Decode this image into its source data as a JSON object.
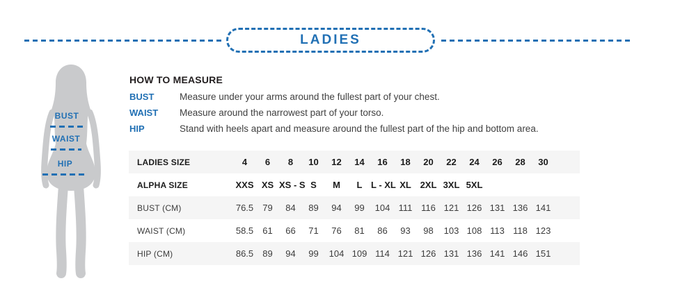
{
  "banner": {
    "title": "LADIES"
  },
  "figure": {
    "description": "female-body-silhouette",
    "labels": {
      "bust": "BUST",
      "waist": "WAIST",
      "hip": "HIP"
    }
  },
  "how_to_measure": {
    "heading": "HOW TO MEASURE",
    "rows": [
      {
        "label": "BUST",
        "text": "Measure under your arms around the fullest part of your chest."
      },
      {
        "label": "WAIST",
        "text": "Measure around the narrowest part of your torso."
      },
      {
        "label": "HIP",
        "text": "Stand with heels apart and measure around the fullest part of the hip and bottom area."
      }
    ]
  },
  "size_table": {
    "rows": [
      {
        "label": "LADIES SIZE",
        "header": true,
        "values": [
          "4",
          "6",
          "8",
          "10",
          "12",
          "14",
          "16",
          "18",
          "20",
          "22",
          "24",
          "26",
          "28",
          "30"
        ]
      },
      {
        "label": "ALPHA SIZE",
        "header": true,
        "values": [
          "XXS",
          "XS",
          "XS - S",
          "S",
          "M",
          "L",
          "L - XL",
          "XL",
          "2XL",
          "3XL",
          "5XL",
          "",
          "",
          ""
        ]
      },
      {
        "label": "BUST (CM)",
        "header": false,
        "values": [
          "76.5",
          "79",
          "84",
          "89",
          "94",
          "99",
          "104",
          "111",
          "116",
          "121",
          "126",
          "131",
          "136",
          "141"
        ]
      },
      {
        "label": "WAIST (CM)",
        "header": false,
        "values": [
          "58.5",
          "61",
          "66",
          "71",
          "76",
          "81",
          "86",
          "93",
          "98",
          "103",
          "108",
          "113",
          "118",
          "123"
        ]
      },
      {
        "label": "HIP (CM)",
        "header": false,
        "values": [
          "86.5",
          "89",
          "94",
          "99",
          "104",
          "109",
          "114",
          "121",
          "126",
          "131",
          "136",
          "141",
          "146",
          "151"
        ]
      }
    ]
  },
  "colors": {
    "accent_blue": "#2170b4",
    "silhouette_gray": "#c9cacc",
    "row_stripe": "#f5f5f5",
    "text_dark": "#231f20"
  }
}
